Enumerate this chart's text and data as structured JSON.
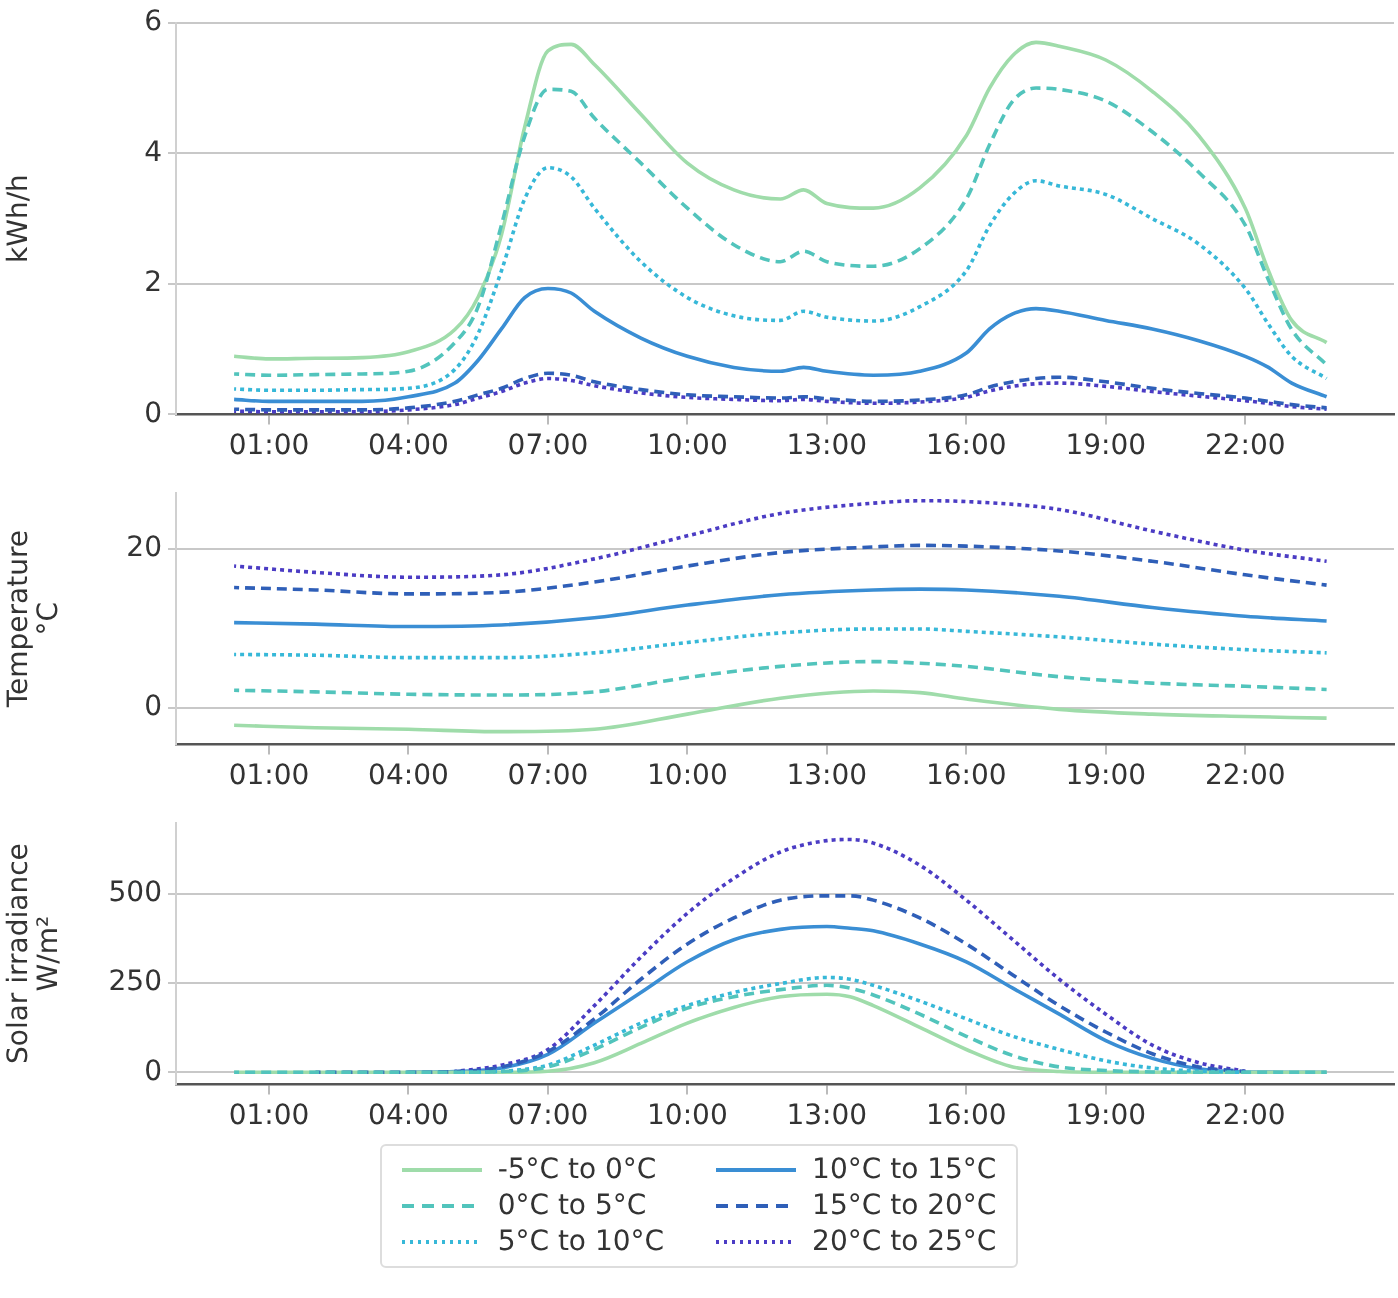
{
  "chart_data": [
    {
      "type": "line",
      "ylabel": "kWh/h",
      "x": [
        0.25,
        1,
        2,
        3,
        4,
        5,
        5.5,
        6,
        6.5,
        7,
        7.5,
        8,
        9,
        10,
        11,
        12,
        12.5,
        13,
        14,
        15,
        16,
        16.5,
        17,
        17.5,
        18,
        19,
        20,
        21,
        22,
        22.5,
        23,
        23.75
      ],
      "xlim": [
        -1,
        25.2
      ],
      "xticks": [
        {
          "value": 1,
          "label": "01:00"
        },
        {
          "value": 4,
          "label": "04:00"
        },
        {
          "value": 7,
          "label": "07:00"
        },
        {
          "value": 10,
          "label": "10:00"
        },
        {
          "value": 13,
          "label": "13:00"
        },
        {
          "value": 16,
          "label": "16:00"
        },
        {
          "value": 19,
          "label": "19:00"
        },
        {
          "value": 22,
          "label": "22:00"
        }
      ],
      "ylim": [
        0,
        6
      ],
      "yticks": [
        0,
        2,
        4,
        6
      ],
      "grid": "y",
      "series": [
        {
          "color": "#9fdcaa",
          "line_style": "solid",
          "values": [
            0.89,
            0.85,
            0.86,
            0.87,
            0.96,
            1.3,
            1.8,
            2.75,
            4.4,
            5.57,
            5.67,
            5.36,
            4.6,
            3.85,
            3.44,
            3.3,
            3.44,
            3.23,
            3.16,
            3.47,
            4.27,
            5.0,
            5.5,
            5.7,
            5.64,
            5.43,
            4.95,
            4.27,
            3.16,
            2.2,
            1.44,
            1.1
          ]
        },
        {
          "color": "#52c4bc",
          "line_style": "dashed",
          "values": [
            0.62,
            0.6,
            0.61,
            0.62,
            0.66,
            1.1,
            1.65,
            2.9,
            4.26,
            4.98,
            4.95,
            4.54,
            3.85,
            3.16,
            2.6,
            2.34,
            2.5,
            2.34,
            2.27,
            2.54,
            3.3,
            4.13,
            4.8,
            5.0,
            4.98,
            4.8,
            4.33,
            3.71,
            2.9,
            2.06,
            1.3,
            0.76
          ]
        },
        {
          "color": "#37b8d8",
          "line_style": "dotted",
          "values": [
            0.39,
            0.37,
            0.37,
            0.38,
            0.4,
            0.69,
            1.24,
            2.2,
            3.3,
            3.78,
            3.64,
            3.16,
            2.34,
            1.79,
            1.51,
            1.44,
            1.58,
            1.49,
            1.43,
            1.65,
            2.2,
            2.89,
            3.37,
            3.58,
            3.5,
            3.37,
            3.0,
            2.61,
            1.93,
            1.38,
            0.89,
            0.55
          ]
        },
        {
          "color": "#3a8ed4",
          "line_style": "solid",
          "values": [
            0.23,
            0.2,
            0.2,
            0.2,
            0.27,
            0.48,
            0.83,
            1.31,
            1.79,
            1.93,
            1.86,
            1.58,
            1.17,
            0.89,
            0.72,
            0.66,
            0.72,
            0.66,
            0.6,
            0.66,
            0.94,
            1.31,
            1.54,
            1.62,
            1.58,
            1.44,
            1.31,
            1.13,
            0.89,
            0.72,
            0.48,
            0.27
          ]
        },
        {
          "color": "#2f5fb8",
          "line_style": "dashed",
          "values": [
            0.08,
            0.07,
            0.07,
            0.07,
            0.1,
            0.2,
            0.3,
            0.4,
            0.55,
            0.63,
            0.6,
            0.5,
            0.38,
            0.3,
            0.27,
            0.25,
            0.27,
            0.24,
            0.2,
            0.22,
            0.3,
            0.42,
            0.5,
            0.55,
            0.57,
            0.5,
            0.4,
            0.32,
            0.25,
            0.2,
            0.15,
            0.1
          ]
        },
        {
          "color": "#4b3cc4",
          "line_style": "dotted",
          "values": [
            0.05,
            0.04,
            0.04,
            0.04,
            0.07,
            0.15,
            0.25,
            0.35,
            0.48,
            0.55,
            0.52,
            0.44,
            0.33,
            0.26,
            0.23,
            0.21,
            0.23,
            0.2,
            0.17,
            0.19,
            0.26,
            0.36,
            0.43,
            0.47,
            0.48,
            0.43,
            0.35,
            0.28,
            0.21,
            0.17,
            0.12,
            0.08
          ]
        }
      ]
    },
    {
      "type": "line",
      "ylabel": "Temperature\n°C",
      "x": [
        0.25,
        2,
        4,
        6,
        8,
        10,
        12,
        14,
        15,
        16,
        18,
        20,
        22,
        23.75
      ],
      "xlim": [
        -1,
        25.2
      ],
      "xticks": [
        {
          "value": 1,
          "label": "01:00"
        },
        {
          "value": 4,
          "label": "04:00"
        },
        {
          "value": 7,
          "label": "07:00"
        },
        {
          "value": 10,
          "label": "10:00"
        },
        {
          "value": 13,
          "label": "13:00"
        },
        {
          "value": 16,
          "label": "16:00"
        },
        {
          "value": 19,
          "label": "19:00"
        },
        {
          "value": 22,
          "label": "22:00"
        }
      ],
      "ylim": [
        -4.6,
        27
      ],
      "yticks": [
        0,
        20
      ],
      "grid": "y",
      "series": [
        {
          "color": "#9fdcaa",
          "line_style": "solid",
          "values": [
            -2.2,
            -2.5,
            -2.7,
            -3.0,
            -2.7,
            -0.8,
            1.2,
            2.1,
            1.9,
            1.1,
            -0.2,
            -0.8,
            -1.1,
            -1.3
          ]
        },
        {
          "color": "#52c4bc",
          "line_style": "dashed",
          "values": [
            2.2,
            2.0,
            1.7,
            1.6,
            2.0,
            3.8,
            5.2,
            5.8,
            5.6,
            5.2,
            3.9,
            3.1,
            2.7,
            2.3
          ]
        },
        {
          "color": "#37b8d8",
          "line_style": "dotted",
          "values": [
            6.7,
            6.6,
            6.3,
            6.3,
            6.9,
            8.2,
            9.4,
            9.9,
            9.9,
            9.6,
            8.9,
            8.0,
            7.3,
            6.9
          ]
        },
        {
          "color": "#3a8ed4",
          "line_style": "solid",
          "values": [
            10.7,
            10.5,
            10.2,
            10.4,
            11.3,
            12.9,
            14.2,
            14.8,
            14.9,
            14.8,
            14.0,
            12.6,
            11.5,
            10.9
          ]
        },
        {
          "color": "#2f5fb8",
          "line_style": "dashed",
          "values": [
            15.1,
            14.8,
            14.3,
            14.5,
            15.8,
            17.8,
            19.5,
            20.2,
            20.4,
            20.3,
            19.7,
            18.4,
            16.7,
            15.4
          ]
        },
        {
          "color": "#4b3cc4",
          "line_style": "dotted",
          "values": [
            17.8,
            17.0,
            16.4,
            16.7,
            18.7,
            21.6,
            24.4,
            25.7,
            26.0,
            25.9,
            24.9,
            22.2,
            19.8,
            18.4
          ]
        }
      ]
    },
    {
      "type": "line",
      "ylabel": "Solar irradiance\nW/m²",
      "legend": "bottom",
      "x": [
        0.25,
        2,
        4,
        5,
        6,
        7,
        8,
        9,
        10,
        11,
        12,
        13,
        13.5,
        14,
        15,
        16,
        17,
        18,
        19,
        20,
        21,
        22,
        23.75
      ],
      "xlim": [
        -1,
        25.2
      ],
      "xticks": [
        {
          "value": 1,
          "label": "01:00"
        },
        {
          "value": 4,
          "label": "04:00"
        },
        {
          "value": 7,
          "label": "07:00"
        },
        {
          "value": 10,
          "label": "10:00"
        },
        {
          "value": 13,
          "label": "13:00"
        },
        {
          "value": 16,
          "label": "16:00"
        },
        {
          "value": 19,
          "label": "19:00"
        },
        {
          "value": 22,
          "label": "22:00"
        }
      ],
      "ylim": [
        -34,
        700
      ],
      "yticks": [
        0,
        250,
        500
      ],
      "grid": "y",
      "series": [
        {
          "name": "-5°C to 0°C",
          "color": "#9fdcaa",
          "line_style": "solid",
          "values": [
            0,
            0,
            0,
            0,
            0,
            3,
            27,
            81,
            138,
            182,
            212,
            219,
            212,
            187,
            126,
            64,
            15,
            2,
            0,
            0,
            0,
            0,
            0
          ]
        },
        {
          "name": "0°C to 5°C",
          "color": "#52c4bc",
          "line_style": "dashed",
          "values": [
            0,
            0,
            0,
            0,
            2,
            15,
            64,
            126,
            180,
            212,
            232,
            244,
            236,
            217,
            163,
            101,
            47,
            15,
            5,
            1,
            0,
            0,
            0
          ]
        },
        {
          "name": "5°C to 10°C",
          "color": "#37b8d8",
          "line_style": "dotted",
          "values": [
            null,
            null,
            null,
            0,
            3,
            20,
            76,
            138,
            187,
            224,
            249,
            266,
            261,
            244,
            200,
            150,
            101,
            64,
            32,
            12,
            3,
            0,
            null
          ]
        },
        {
          "name": "10°C to 15°C",
          "color": "#3a8ed4",
          "line_style": "solid",
          "values": [
            null,
            null,
            0,
            2,
            12,
            50,
            138,
            224,
            310,
            372,
            401,
            409,
            404,
            397,
            360,
            310,
            236,
            163,
            89,
            39,
            10,
            1,
            0
          ]
        },
        {
          "name": "15°C to 20°C",
          "color": "#2f5fb8",
          "line_style": "dashed",
          "values": [
            null,
            0,
            0,
            2,
            15,
            58,
            150,
            261,
            360,
            433,
            483,
            495,
            495,
            483,
            433,
            360,
            273,
            187,
            113,
            52,
            15,
            2,
            null
          ]
        },
        {
          "name": "20°C to 25°C",
          "color": "#4b3cc4",
          "line_style": "dotted",
          "values": [
            null,
            null,
            null,
            2,
            20,
            64,
            187,
            323,
            446,
            544,
            618,
            650,
            653,
            643,
            581,
            483,
            372,
            261,
            163,
            76,
            27,
            3,
            null
          ]
        }
      ]
    }
  ]
}
